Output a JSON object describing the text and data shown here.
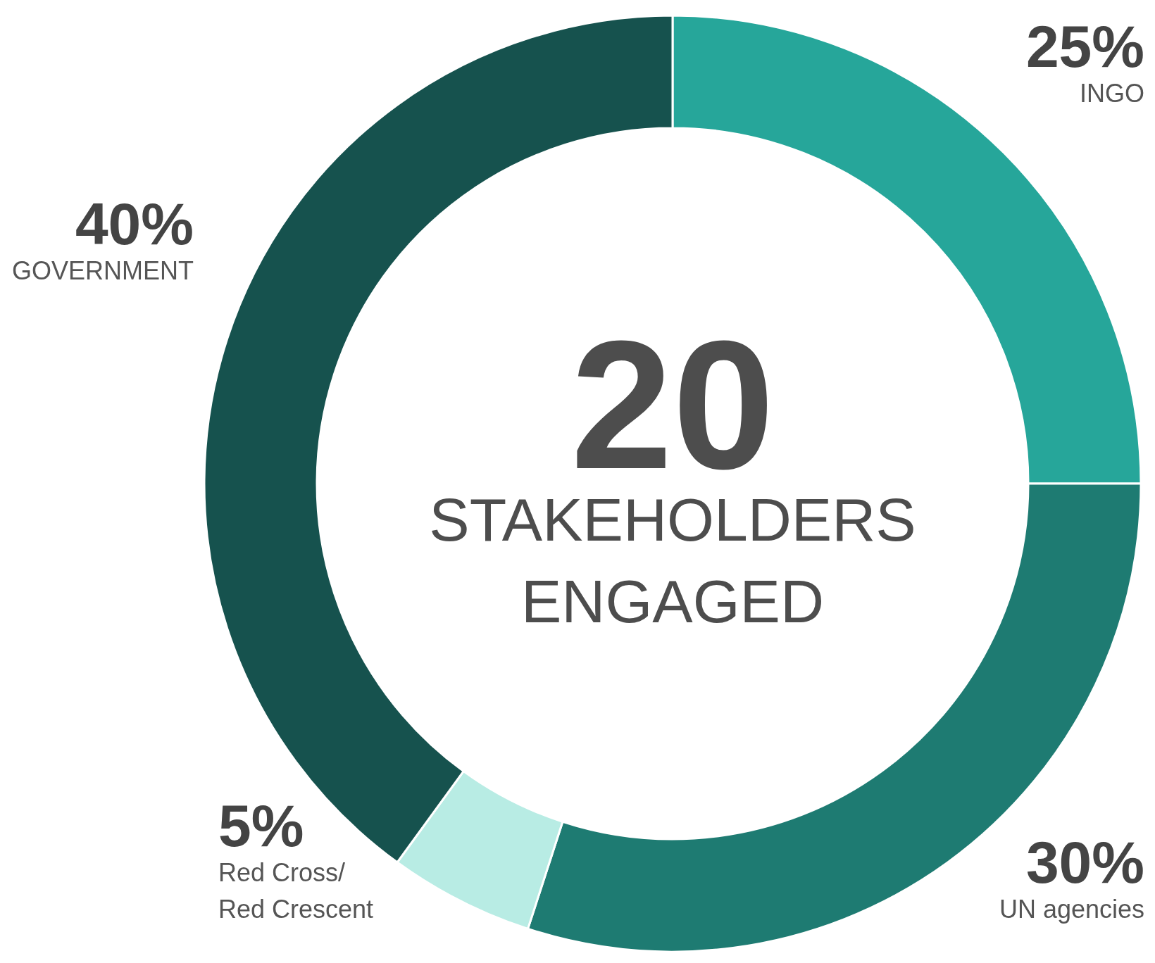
{
  "chart_data": {
    "type": "donut",
    "categories": [
      "INGO",
      "UN agencies",
      "Red Cross/Red Crescent",
      "GOVERNMENT"
    ],
    "values": [
      25,
      30,
      5,
      40
    ],
    "colors": [
      "#26a69a",
      "#1e7b72",
      "#b8ece4",
      "#16524e"
    ],
    "value_labels": [
      "25%",
      "30%",
      "5%",
      "40%"
    ],
    "annotations": [
      "20",
      "STAKEHOLDERS ENGAGED"
    ]
  }
}
